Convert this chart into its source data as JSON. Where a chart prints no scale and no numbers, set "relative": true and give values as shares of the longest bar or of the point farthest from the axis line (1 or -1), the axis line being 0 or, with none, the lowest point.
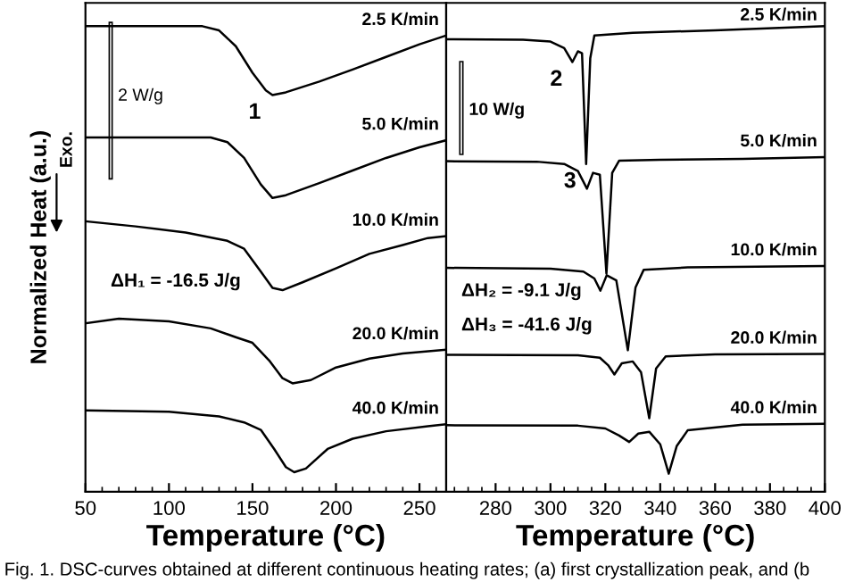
{
  "chart_data": [
    {
      "type": "line",
      "relative": true,
      "ylabel": "Normalized Heat (a.u.)",
      "xlabel": "Temperature (°C)",
      "xlim": [
        50,
        266
      ],
      "xticks": [
        50,
        100,
        150,
        200,
        250
      ],
      "tick_labels": "x",
      "grid": false,
      "legend": false,
      "marker": "none",
      "line_style": "solid",
      "series": [
        {
          "name": "2.5 K/min",
          "color": "#000000",
          "x": [
            50,
            120,
            130,
            140,
            150,
            158,
            162,
            170,
            190,
            210,
            230,
            250,
            266
          ],
          "values": [
            1.0,
            1.0,
            0.991,
            0.957,
            0.9,
            0.862,
            0.852,
            0.858,
            0.881,
            0.907,
            0.934,
            0.961,
            0.98
          ]
        },
        {
          "name": "5.0 K/min",
          "color": "#000000",
          "x": [
            50,
            125,
            135,
            145,
            155,
            162,
            170,
            190,
            210,
            230,
            250,
            266
          ],
          "values": [
            0.761,
            0.761,
            0.751,
            0.717,
            0.66,
            0.631,
            0.637,
            0.663,
            0.69,
            0.717,
            0.74,
            0.755
          ]
        },
        {
          "name": "10.0 K/min",
          "color": "#000000",
          "x": [
            50,
            80,
            110,
            135,
            145,
            155,
            162,
            168,
            180,
            200,
            220,
            240,
            255,
            266
          ],
          "values": [
            0.581,
            0.57,
            0.557,
            0.539,
            0.522,
            0.473,
            0.438,
            0.433,
            0.45,
            0.48,
            0.511,
            0.53,
            0.545,
            0.549
          ]
        },
        {
          "name": "20.0 K/min",
          "color": "#000000",
          "x": [
            50,
            70,
            100,
            125,
            140,
            150,
            160,
            168,
            174,
            185,
            200,
            220,
            240,
            266
          ],
          "values": [
            0.362,
            0.372,
            0.366,
            0.351,
            0.332,
            0.32,
            0.282,
            0.244,
            0.233,
            0.24,
            0.267,
            0.286,
            0.297,
            0.305
          ]
        },
        {
          "name": "40.0 K/min",
          "color": "#000000",
          "x": [
            50,
            100,
            130,
            145,
            155,
            163,
            170,
            175,
            182,
            195,
            210,
            230,
            255,
            266
          ],
          "values": [
            0.175,
            0.172,
            0.162,
            0.149,
            0.133,
            0.092,
            0.053,
            0.042,
            0.05,
            0.092,
            0.114,
            0.13,
            0.141,
            0.145
          ]
        }
      ],
      "annotations": [
        {
          "text": "1",
          "x": 161,
          "y": 0.852
        },
        "2 W/g",
        "Exo.",
        "ΔH₁ = -16.5 J/g",
        "Fig. 1. DSC-curves obtained at different continuous heating rates; (a) first crystallization peak, and (b"
      ]
    },
    {
      "type": "line",
      "relative": true,
      "xlabel": "Temperature (°C)",
      "xlim": [
        262,
        400
      ],
      "xticks": [
        280,
        300,
        320,
        340,
        360,
        380,
        400
      ],
      "tick_labels": "x",
      "grid": false,
      "legend": false,
      "marker": "none",
      "line_style": "solid",
      "series": [
        {
          "name": "2.5 K/min",
          "color": "#000000",
          "x": [
            262,
            290,
            300,
            305,
            308,
            310,
            311.5,
            313,
            314.5,
            316,
            330,
            360,
            400
          ],
          "values": [
            0.972,
            0.971,
            0.967,
            0.953,
            0.923,
            0.946,
            0.942,
            0.704,
            0.931,
            0.98,
            0.986,
            0.991,
            1.0
          ]
        },
        {
          "name": "5.0 K/min",
          "color": "#000000",
          "x": [
            262,
            295,
            305,
            310,
            313.3,
            315.5,
            318,
            320.4,
            322.5,
            325,
            340,
            370,
            400
          ],
          "values": [
            0.71,
            0.709,
            0.704,
            0.689,
            0.651,
            0.685,
            0.681,
            0.469,
            0.685,
            0.711,
            0.713,
            0.715,
            0.719
          ]
        },
        {
          "name": "10.0 K/min",
          "color": "#000000",
          "x": [
            262,
            300,
            312,
            316,
            318.2,
            320.5,
            324,
            328.2,
            331,
            334,
            350,
            400
          ],
          "values": [
            0.481,
            0.479,
            0.473,
            0.458,
            0.432,
            0.465,
            0.454,
            0.304,
            0.439,
            0.477,
            0.482,
            0.485
          ]
        },
        {
          "name": "20.0 K/min",
          "color": "#000000",
          "x": [
            262,
            310,
            318,
            321,
            323.3,
            326,
            330,
            333,
            336,
            338.5,
            342,
            360,
            400
          ],
          "values": [
            0.294,
            0.293,
            0.288,
            0.272,
            0.252,
            0.276,
            0.28,
            0.257,
            0.158,
            0.265,
            0.291,
            0.295,
            0.296
          ]
        },
        {
          "name": "40.0 K/min",
          "color": "#000000",
          "x": [
            262,
            310,
            320,
            325,
            328.7,
            332,
            336,
            340,
            343.1,
            346,
            350,
            370,
            400
          ],
          "values": [
            0.143,
            0.142,
            0.136,
            0.121,
            0.107,
            0.125,
            0.129,
            0.102,
            0.039,
            0.098,
            0.132,
            0.144,
            0.146
          ]
        }
      ],
      "annotations": [
        {
          "text": "2",
          "x": 308,
          "y": 0.923
        },
        {
          "text": "3",
          "x": 313,
          "y": 0.704
        },
        "10 W/g",
        "ΔH₂ = -9.1 J/g",
        "ΔH₃ = -41.6 J/g"
      ]
    }
  ]
}
